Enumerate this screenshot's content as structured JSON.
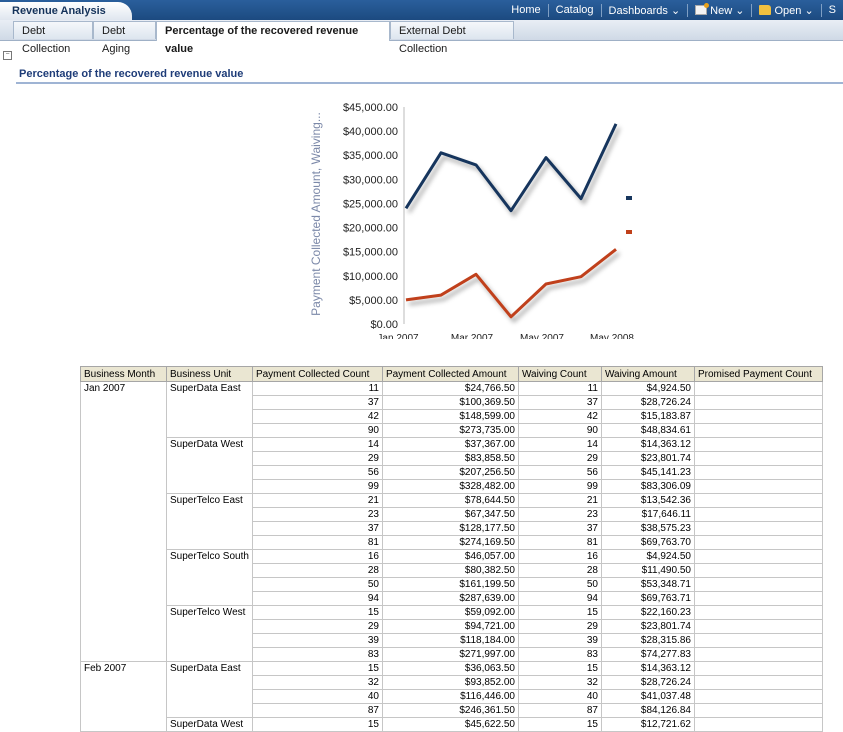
{
  "header": {
    "app_title": "Revenue Analysis",
    "links": {
      "home": "Home",
      "catalog": "Catalog",
      "dashboards": "Dashboards",
      "new": "New",
      "open": "Open",
      "overflow": "S"
    }
  },
  "tabs": [
    {
      "label": "Debt Collection"
    },
    {
      "label": "Debt Aging"
    },
    {
      "label": "Percentage of the recovered revenue value"
    },
    {
      "label": "External Debt Collection"
    }
  ],
  "section": {
    "title": "Percentage of the recovered revenue value"
  },
  "chart_data": {
    "type": "line",
    "ylabel": "Payment Collected Amount, Waiving...",
    "ylim": [
      0,
      45000
    ],
    "y_ticks": [
      "$45,000.00",
      "$40,000.00",
      "$35,000.00",
      "$30,000.00",
      "$25,000.00",
      "$20,000.00",
      "$15,000.00",
      "$10,000.00",
      "$5,000.00",
      "$0.00"
    ],
    "x_tick_labels": [
      "Jan 2007",
      "Mar 2007",
      "May 2007",
      "May 2008"
    ],
    "grid": false,
    "legend": "right",
    "series": [
      {
        "color": "#17365d",
        "values": [
          24000,
          35500,
          33000,
          23500,
          34500,
          26000,
          41500
        ]
      },
      {
        "color": "#c0401a",
        "values": [
          5000,
          6000,
          10300,
          1500,
          8300,
          9800,
          15500
        ]
      }
    ]
  },
  "table": {
    "headers": [
      "Business Month",
      "Business Unit",
      "Payment Collected Count",
      "Payment Collected Amount",
      "Waiving Count",
      "Waiving Amount",
      "Promised Payment Count"
    ],
    "months": [
      {
        "month": "Jan 2007",
        "units": [
          {
            "unit": "SuperData East",
            "rows": [
              [
                "11",
                "$24,766.50",
                "11",
                "$4,924.50"
              ],
              [
                "37",
                "$100,369.50",
                "37",
                "$28,726.24"
              ],
              [
                "42",
                "$148,599.00",
                "42",
                "$15,183.87"
              ],
              [
                "90",
                "$273,735.00",
                "90",
                "$48,834.61"
              ]
            ]
          },
          {
            "unit": "SuperData West",
            "rows": [
              [
                "14",
                "$37,367.00",
                "14",
                "$14,363.12"
              ],
              [
                "29",
                "$83,858.50",
                "29",
                "$23,801.74"
              ],
              [
                "56",
                "$207,256.50",
                "56",
                "$45,141.23"
              ],
              [
                "99",
                "$328,482.00",
                "99",
                "$83,306.09"
              ]
            ]
          },
          {
            "unit": "SuperTelco East",
            "rows": [
              [
                "21",
                "$78,644.50",
                "21",
                "$13,542.36"
              ],
              [
                "23",
                "$67,347.50",
                "23",
                "$17,646.11"
              ],
              [
                "37",
                "$128,177.50",
                "37",
                "$38,575.23"
              ],
              [
                "81",
                "$274,169.50",
                "81",
                "$69,763.70"
              ]
            ]
          },
          {
            "unit": "SuperTelco South",
            "rows": [
              [
                "16",
                "$46,057.00",
                "16",
                "$4,924.50"
              ],
              [
                "28",
                "$80,382.50",
                "28",
                "$11,490.50"
              ],
              [
                "50",
                "$161,199.50",
                "50",
                "$53,348.71"
              ],
              [
                "94",
                "$287,639.00",
                "94",
                "$69,763.71"
              ]
            ]
          },
          {
            "unit": "SuperTelco West",
            "rows": [
              [
                "15",
                "$59,092.00",
                "15",
                "$22,160.23"
              ],
              [
                "29",
                "$94,721.00",
                "29",
                "$23,801.74"
              ],
              [
                "39",
                "$118,184.00",
                "39",
                "$28,315.86"
              ],
              [
                "83",
                "$271,997.00",
                "83",
                "$74,277.83"
              ]
            ]
          }
        ]
      },
      {
        "month": "Feb 2007",
        "units": [
          {
            "unit": "SuperData East",
            "rows": [
              [
                "15",
                "$36,063.50",
                "15",
                "$14,363.12"
              ],
              [
                "32",
                "$93,852.00",
                "32",
                "$28,726.24"
              ],
              [
                "40",
                "$116,446.00",
                "40",
                "$41,037.48"
              ],
              [
                "87",
                "$246,361.50",
                "87",
                "$84,126.84"
              ]
            ]
          },
          {
            "unit": "SuperData West",
            "rows": [
              [
                "15",
                "$45,622.50",
                "15",
                "$12,721.62"
              ]
            ]
          }
        ]
      }
    ]
  }
}
